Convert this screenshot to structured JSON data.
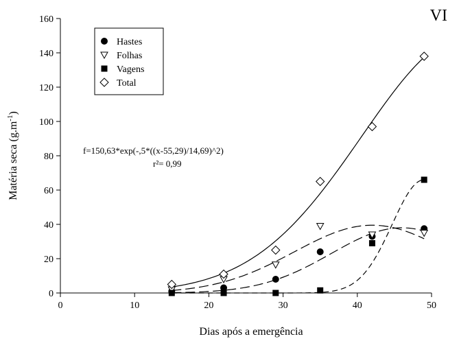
{
  "chart_data": {
    "type": "scatter",
    "panel_label": "VI",
    "xlabel": "Dias após a emergência",
    "ylabel": "Matéria seca (g.m",
    "ylabel_sup": "-1",
    "ylabel_close": ")",
    "xlim": [
      0,
      50
    ],
    "ylim": [
      0,
      160
    ],
    "x_ticks": [
      0,
      10,
      20,
      30,
      40,
      50
    ],
    "y_ticks": [
      0,
      20,
      40,
      60,
      80,
      100,
      120,
      140,
      160
    ],
    "grid": false,
    "legend_position": "top-left",
    "equation": "f=150,63*exp(-,5*((x-55,29)/14,69)^2)",
    "r_squared": "r²= 0,99",
    "series": [
      {
        "name": "Hastes",
        "marker": "filled-circle",
        "points": [
          [
            15,
            1
          ],
          [
            22,
            3
          ],
          [
            29,
            8
          ],
          [
            35,
            24
          ],
          [
            42,
            33
          ],
          [
            49,
            37.5
          ]
        ],
        "curve": {
          "style": "long-dash",
          "a": 38,
          "b": 46,
          "c": 9.5
        }
      },
      {
        "name": "Folhas",
        "marker": "open-triangle-down",
        "points": [
          [
            15,
            2
          ],
          [
            22,
            8
          ],
          [
            29,
            16.5
          ],
          [
            35,
            39
          ],
          [
            42,
            34
          ],
          [
            49,
            35
          ]
        ],
        "curve": {
          "style": "long-dash",
          "a": 39.5,
          "b": 42,
          "c": 10.5
        }
      },
      {
        "name": "Vagens",
        "marker": "filled-square",
        "points": [
          [
            15,
            0
          ],
          [
            22,
            0
          ],
          [
            29,
            0
          ],
          [
            35,
            1.5
          ],
          [
            42,
            29
          ],
          [
            49,
            66
          ]
        ],
        "curve": {
          "style": "short-dash",
          "a": 66,
          "b": 49,
          "c": 4.3
        }
      },
      {
        "name": "Total",
        "marker": "open-diamond",
        "points": [
          [
            15,
            5
          ],
          [
            22,
            11
          ],
          [
            29,
            25
          ],
          [
            35,
            65
          ],
          [
            42,
            97
          ],
          [
            49,
            138
          ]
        ],
        "curve": {
          "style": "solid",
          "a": 150.63,
          "b": 55.29,
          "c": 14.69
        }
      }
    ]
  }
}
